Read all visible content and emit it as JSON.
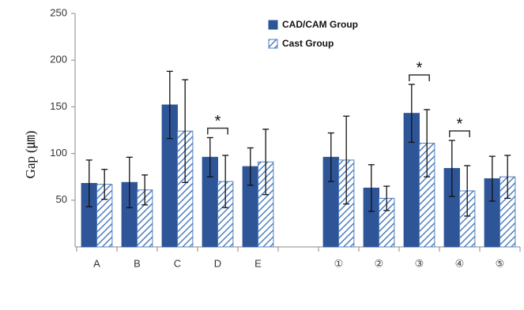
{
  "chart_data": {
    "type": "bar",
    "y_label": "Gap (㎛)",
    "categories": [
      "A",
      "B",
      "C",
      "D",
      "E",
      null,
      "①",
      "②",
      "③",
      "④",
      "⑤"
    ],
    "series": [
      {
        "name": "CAD/CAM Group",
        "color": "#2e5597",
        "pattern": "solid",
        "values": [
          68,
          69,
          152,
          96,
          86,
          null,
          96,
          63,
          143,
          84,
          73
        ],
        "errors": [
          25,
          27,
          36,
          21,
          20,
          null,
          26,
          25,
          31,
          30,
          24
        ]
      },
      {
        "name": "Cast Group",
        "color": "#4f7fc0",
        "pattern": "hatch",
        "values": [
          67,
          61,
          124,
          70,
          91,
          null,
          93,
          52,
          111,
          60,
          75
        ],
        "errors": [
          16,
          16,
          55,
          28,
          35,
          null,
          47,
          13,
          36,
          27,
          23
        ]
      }
    ],
    "annotations": [
      {
        "text": "*",
        "category": "D"
      },
      {
        "text": "*",
        "category": "③"
      },
      {
        "text": "*",
        "category": "④"
      }
    ],
    "ylim": [
      0,
      250
    ],
    "yticks": [
      50,
      100,
      150,
      200,
      250
    ],
    "grid": false
  }
}
